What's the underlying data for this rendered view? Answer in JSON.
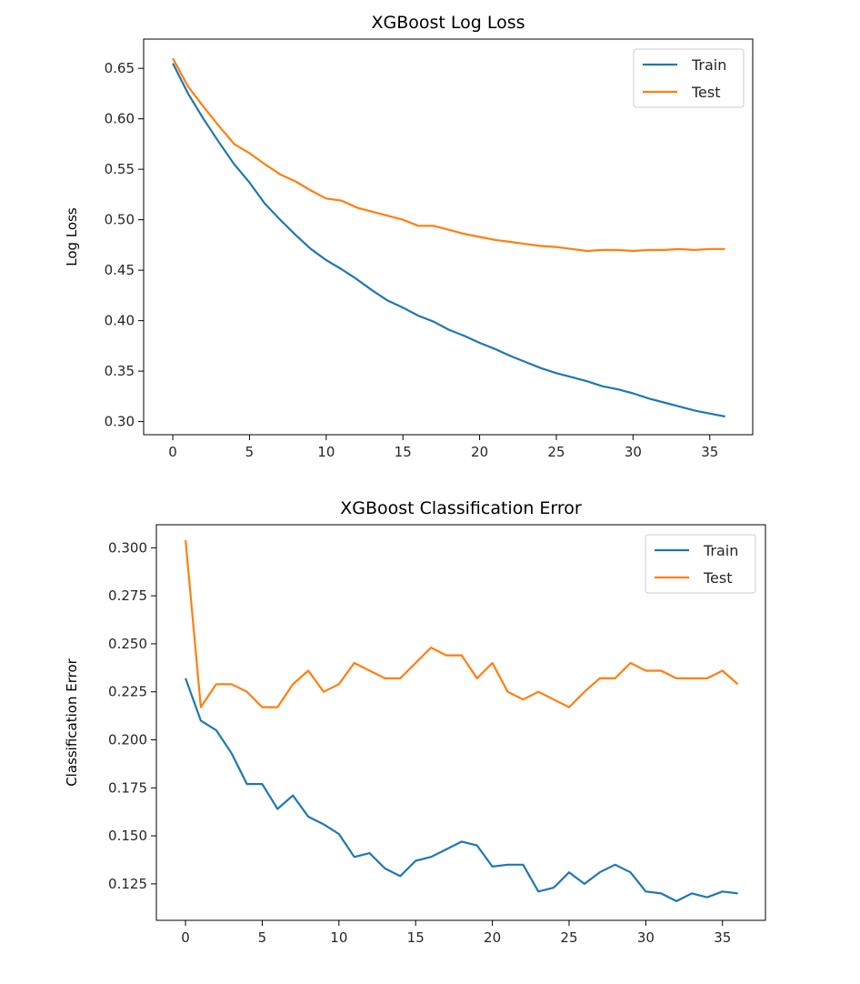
{
  "chart_data": [
    {
      "type": "line",
      "title": "XGBoost Log Loss",
      "xlabel": "",
      "ylabel": "Log Loss",
      "xlim": [
        -1.9,
        37.8
      ],
      "ylim": [
        0.287,
        0.679
      ],
      "xticks": [
        0,
        5,
        10,
        15,
        20,
        25,
        30,
        35
      ],
      "yticks": [
        0.3,
        0.35,
        0.4,
        0.45,
        0.5,
        0.55,
        0.6,
        0.65
      ],
      "ytick_labels": [
        "0.30",
        "0.35",
        "0.40",
        "0.45",
        "0.50",
        "0.55",
        "0.60",
        "0.65"
      ],
      "grid": false,
      "legend": "top-right",
      "x": [
        0,
        1,
        2,
        3,
        4,
        5,
        6,
        7,
        8,
        9,
        10,
        11,
        12,
        13,
        14,
        15,
        16,
        17,
        18,
        19,
        20,
        21,
        22,
        23,
        24,
        25,
        26,
        27,
        28,
        29,
        30,
        31,
        32,
        33,
        34,
        35,
        36
      ],
      "series": [
        {
          "name": "Train",
          "color": "#1f77b4",
          "values": [
            0.655,
            0.625,
            0.6,
            0.577,
            0.555,
            0.537,
            0.516,
            0.5,
            0.485,
            0.471,
            0.46,
            0.451,
            0.441,
            0.43,
            0.42,
            0.413,
            0.405,
            0.399,
            0.391,
            0.385,
            0.378,
            0.372,
            0.365,
            0.359,
            0.353,
            0.348,
            0.344,
            0.34,
            0.335,
            0.332,
            0.328,
            0.323,
            0.319,
            0.315,
            0.311,
            0.308,
            0.305
          ]
        },
        {
          "name": "Test",
          "color": "#ff7f0e",
          "values": [
            0.66,
            0.632,
            0.612,
            0.593,
            0.575,
            0.566,
            0.555,
            0.545,
            0.538,
            0.529,
            0.521,
            0.519,
            0.512,
            0.508,
            0.504,
            0.5,
            0.494,
            0.494,
            0.49,
            0.486,
            0.483,
            0.48,
            0.478,
            0.476,
            0.474,
            0.473,
            0.471,
            0.469,
            0.47,
            0.47,
            0.469,
            0.47,
            0.47,
            0.471,
            0.47,
            0.471,
            0.471
          ]
        }
      ]
    },
    {
      "type": "line",
      "title": "XGBoost Classification Error",
      "xlabel": "",
      "ylabel": "Classification Error",
      "xlim": [
        -1.9,
        37.8
      ],
      "ylim": [
        0.106,
        0.312
      ],
      "xticks": [
        0,
        5,
        10,
        15,
        20,
        25,
        30,
        35
      ],
      "yticks": [
        0.125,
        0.15,
        0.175,
        0.2,
        0.225,
        0.25,
        0.275,
        0.3
      ],
      "ytick_labels": [
        "0.125",
        "0.150",
        "0.175",
        "0.200",
        "0.225",
        "0.250",
        "0.275",
        "0.300"
      ],
      "grid": false,
      "legend": "top-right",
      "x": [
        0,
        1,
        2,
        3,
        4,
        5,
        6,
        7,
        8,
        9,
        10,
        11,
        12,
        13,
        14,
        15,
        16,
        17,
        18,
        19,
        20,
        21,
        22,
        23,
        24,
        25,
        26,
        27,
        28,
        29,
        30,
        31,
        32,
        33,
        34,
        35,
        36
      ],
      "series": [
        {
          "name": "Train",
          "color": "#1f77b4",
          "values": [
            0.232,
            0.21,
            0.205,
            0.193,
            0.177,
            0.177,
            0.164,
            0.171,
            0.16,
            0.156,
            0.151,
            0.139,
            0.141,
            0.133,
            0.129,
            0.137,
            0.139,
            0.143,
            0.147,
            0.145,
            0.134,
            0.135,
            0.135,
            0.121,
            0.123,
            0.131,
            0.125,
            0.131,
            0.135,
            0.131,
            0.121,
            0.12,
            0.116,
            0.12,
            0.118,
            0.121,
            0.12
          ]
        },
        {
          "name": "Test",
          "color": "#ff7f0e",
          "values": [
            0.304,
            0.217,
            0.229,
            0.229,
            0.225,
            0.217,
            0.217,
            0.229,
            0.236,
            0.225,
            0.229,
            0.24,
            0.236,
            0.232,
            0.232,
            0.24,
            0.248,
            0.244,
            0.244,
            0.232,
            0.24,
            0.225,
            0.221,
            0.225,
            0.221,
            0.217,
            0.225,
            0.232,
            0.232,
            0.24,
            0.236,
            0.236,
            0.232,
            0.232,
            0.232,
            0.236,
            0.229
          ]
        }
      ]
    }
  ]
}
